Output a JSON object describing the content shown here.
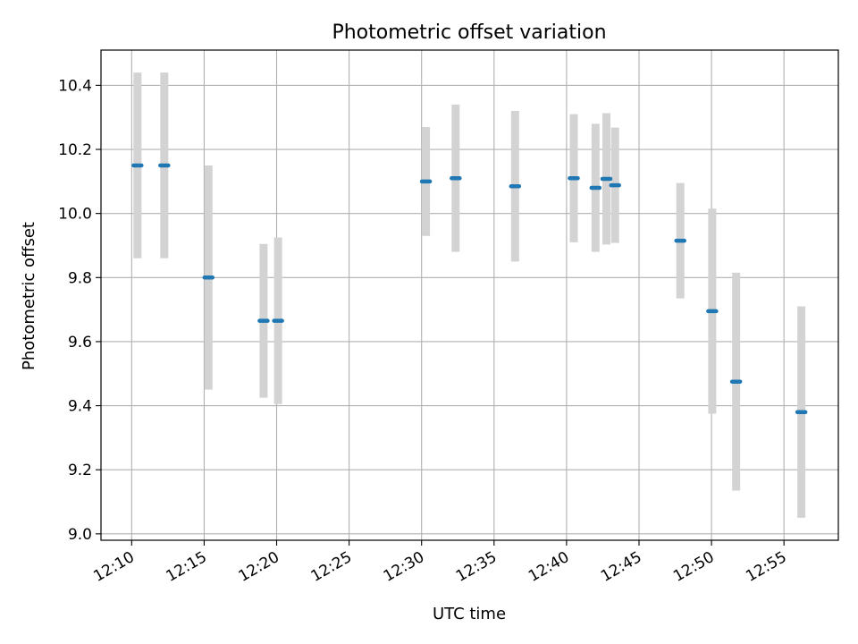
{
  "chart_data": {
    "type": "scatter",
    "title": "Photometric offset variation",
    "xlabel": "UTC time",
    "ylabel": "Photometric offset",
    "x_ticks": [
      "12:10",
      "12:15",
      "12:20",
      "12:25",
      "12:30",
      "12:35",
      "12:40",
      "12:45",
      "12:50",
      "12:55"
    ],
    "y_ticks": [
      "9.0",
      "9.2",
      "9.4",
      "9.6",
      "9.8",
      "10.0",
      "10.2",
      "10.4"
    ],
    "xlim": [
      "12:07:53",
      "12:58:45"
    ],
    "ylim": [
      8.98,
      10.51
    ],
    "grid": true,
    "points": [
      {
        "time": "12:10:24",
        "y": 10.15,
        "err": 0.29
      },
      {
        "time": "12:12:15",
        "y": 10.15,
        "err": 0.29
      },
      {
        "time": "12:15:18",
        "y": 9.8,
        "err": 0.35
      },
      {
        "time": "12:19:06",
        "y": 9.665,
        "err": 0.24
      },
      {
        "time": "12:20:06",
        "y": 9.665,
        "err": 0.26
      },
      {
        "time": "12:30:18",
        "y": 10.1,
        "err": 0.17
      },
      {
        "time": "12:32:21",
        "y": 10.11,
        "err": 0.23
      },
      {
        "time": "12:36:27",
        "y": 10.085,
        "err": 0.235
      },
      {
        "time": "12:40:30",
        "y": 10.11,
        "err": 0.2
      },
      {
        "time": "12:42:00",
        "y": 10.08,
        "err": 0.2
      },
      {
        "time": "12:42:45",
        "y": 10.108,
        "err": 0.205
      },
      {
        "time": "12:43:21",
        "y": 10.088,
        "err": 0.18
      },
      {
        "time": "12:47:51",
        "y": 9.915,
        "err": 0.18
      },
      {
        "time": "12:50:03",
        "y": 9.695,
        "err": 0.32
      },
      {
        "time": "12:51:42",
        "y": 9.475,
        "err": 0.34
      },
      {
        "time": "12:56:12",
        "y": 9.38,
        "err": 0.33
      }
    ],
    "colors": {
      "marker": "#1f77b4",
      "errorbar": "#d3d3d3",
      "grid": "#b0b0b0",
      "axes": "#000000"
    }
  }
}
